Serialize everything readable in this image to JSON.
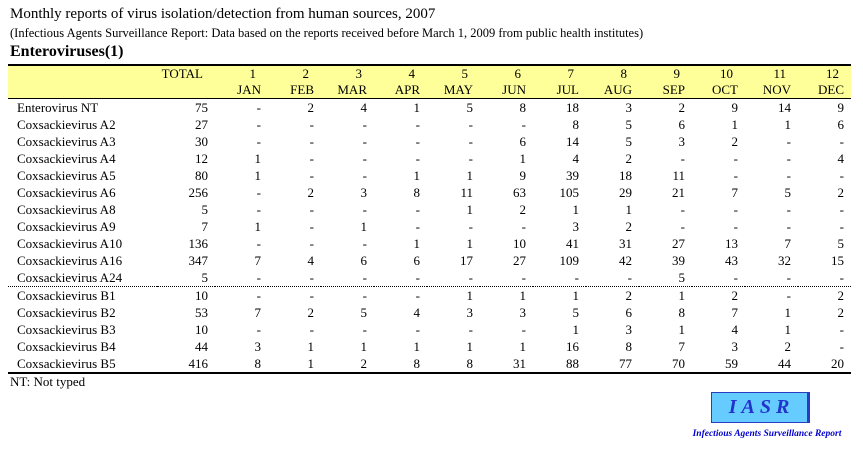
{
  "header": {
    "title": "Monthly reports of virus isolation/detection from human sources, 2007",
    "subtitle": "(Infectious Agents Surveillance Report: Data based on the reports received before March 1, 2009 from public health institutes)",
    "section": "Enteroviruses(1)"
  },
  "table": {
    "corner_label": "",
    "total_label": "TOTAL",
    "months": [
      {
        "num": "1",
        "abbr": "JAN"
      },
      {
        "num": "2",
        "abbr": "FEB"
      },
      {
        "num": "3",
        "abbr": "MAR"
      },
      {
        "num": "4",
        "abbr": "APR"
      },
      {
        "num": "5",
        "abbr": "MAY"
      },
      {
        "num": "6",
        "abbr": "JUN"
      },
      {
        "num": "7",
        "abbr": "JUL"
      },
      {
        "num": "8",
        "abbr": "AUG"
      },
      {
        "num": "9",
        "abbr": "SEP"
      },
      {
        "num": "10",
        "abbr": "OCT"
      },
      {
        "num": "11",
        "abbr": "NOV"
      },
      {
        "num": "12",
        "abbr": "DEC"
      }
    ],
    "rows": [
      {
        "name": "Enterovirus NT",
        "values": [
          "75",
          "-",
          "2",
          "4",
          "1",
          "5",
          "8",
          "18",
          "3",
          "2",
          "9",
          "14",
          "9"
        ],
        "group_start": false
      },
      {
        "name": "Coxsackievirus A2",
        "values": [
          "27",
          "-",
          "-",
          "-",
          "-",
          "-",
          "-",
          "8",
          "5",
          "6",
          "1",
          "1",
          "6"
        ],
        "group_start": false
      },
      {
        "name": "Coxsackievirus A3",
        "values": [
          "30",
          "-",
          "-",
          "-",
          "-",
          "-",
          "6",
          "14",
          "5",
          "3",
          "2",
          "-",
          "-"
        ],
        "group_start": false
      },
      {
        "name": "Coxsackievirus A4",
        "values": [
          "12",
          "1",
          "-",
          "-",
          "-",
          "-",
          "1",
          "4",
          "2",
          "-",
          "-",
          "-",
          "4"
        ],
        "group_start": false
      },
      {
        "name": "Coxsackievirus A5",
        "values": [
          "80",
          "1",
          "-",
          "-",
          "1",
          "1",
          "9",
          "39",
          "18",
          "11",
          "-",
          "-",
          "-"
        ],
        "group_start": false
      },
      {
        "name": "Coxsackievirus A6",
        "values": [
          "256",
          "-",
          "2",
          "3",
          "8",
          "11",
          "63",
          "105",
          "29",
          "21",
          "7",
          "5",
          "2"
        ],
        "group_start": false
      },
      {
        "name": "Coxsackievirus A8",
        "values": [
          "5",
          "-",
          "-",
          "-",
          "-",
          "1",
          "2",
          "1",
          "1",
          "-",
          "-",
          "-",
          "-"
        ],
        "group_start": false
      },
      {
        "name": "Coxsackievirus A9",
        "values": [
          "7",
          "1",
          "-",
          "1",
          "-",
          "-",
          "-",
          "3",
          "2",
          "-",
          "-",
          "-",
          "-"
        ],
        "group_start": false
      },
      {
        "name": "Coxsackievirus A10",
        "values": [
          "136",
          "-",
          "-",
          "-",
          "1",
          "1",
          "10",
          "41",
          "31",
          "27",
          "13",
          "7",
          "5"
        ],
        "group_start": false
      },
      {
        "name": "Coxsackievirus A16",
        "values": [
          "347",
          "7",
          "4",
          "6",
          "6",
          "17",
          "27",
          "109",
          "42",
          "39",
          "43",
          "32",
          "15"
        ],
        "group_start": false
      },
      {
        "name": "Coxsackievirus A24",
        "values": [
          "5",
          "-",
          "-",
          "-",
          "-",
          "-",
          "-",
          "-",
          "-",
          "5",
          "-",
          "-",
          "-"
        ],
        "group_start": false
      },
      {
        "name": "Coxsackievirus B1",
        "values": [
          "10",
          "-",
          "-",
          "-",
          "-",
          "1",
          "1",
          "1",
          "2",
          "1",
          "2",
          "-",
          "2"
        ],
        "group_start": true
      },
      {
        "name": "Coxsackievirus B2",
        "values": [
          "53",
          "7",
          "2",
          "5",
          "4",
          "3",
          "3",
          "5",
          "6",
          "8",
          "7",
          "1",
          "2"
        ],
        "group_start": false
      },
      {
        "name": "Coxsackievirus B3",
        "values": [
          "10",
          "-",
          "-",
          "-",
          "-",
          "-",
          "-",
          "1",
          "3",
          "1",
          "4",
          "1",
          "-"
        ],
        "group_start": false
      },
      {
        "name": "Coxsackievirus B4",
        "values": [
          "44",
          "3",
          "1",
          "1",
          "1",
          "1",
          "1",
          "16",
          "8",
          "7",
          "3",
          "2",
          "-"
        ],
        "group_start": false
      },
      {
        "name": "Coxsackievirus B5",
        "values": [
          "416",
          "8",
          "1",
          "2",
          "8",
          "8",
          "31",
          "88",
          "77",
          "70",
          "59",
          "44",
          "20"
        ],
        "group_start": false
      }
    ],
    "footnote": "NT: Not typed"
  },
  "logo": {
    "text": "IASR",
    "caption": "Infectious Agents Surveillance Report"
  },
  "colors": {
    "header_bg": "#FFFF99",
    "logo_bg": "#66CCFF",
    "logo_text": "#2233CC",
    "caption_text": "#0000CC"
  }
}
